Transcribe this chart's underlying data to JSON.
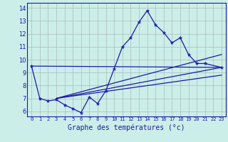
{
  "title": "Graphe des températures (°c)",
  "bg_color": "#cceee8",
  "grid_color": "#aabbbb",
  "line_color": "#1a1aaa",
  "xlim": [
    -0.5,
    23.5
  ],
  "ylim": [
    5.6,
    14.4
  ],
  "yticks": [
    6,
    7,
    8,
    9,
    10,
    11,
    12,
    13,
    14
  ],
  "xticks": [
    0,
    1,
    2,
    3,
    4,
    5,
    6,
    7,
    8,
    9,
    10,
    11,
    12,
    13,
    14,
    15,
    16,
    17,
    18,
    19,
    20,
    21,
    22,
    23
  ],
  "x_labels": [
    "0",
    "1",
    "2",
    "3",
    "4",
    "5",
    "6",
    "7",
    "8",
    "9",
    "10",
    "11",
    "12",
    "13",
    "14",
    "15",
    "16",
    "17",
    "18",
    "19",
    "20",
    "21",
    "22",
    "23"
  ],
  "main_x": [
    0,
    1,
    2,
    3,
    4,
    5,
    6,
    7,
    8,
    9,
    10,
    11,
    12,
    13,
    14,
    15,
    16,
    17,
    18,
    19,
    20,
    21,
    23
  ],
  "main_y": [
    9.5,
    7.0,
    6.8,
    6.9,
    6.5,
    6.2,
    5.9,
    7.1,
    6.6,
    7.6,
    9.3,
    11.0,
    11.7,
    12.9,
    13.8,
    12.7,
    12.1,
    11.3,
    11.7,
    10.4,
    9.7,
    9.7,
    9.4
  ],
  "trend_lines": [
    {
      "x": [
        0,
        23
      ],
      "y": [
        9.5,
        9.4
      ]
    },
    {
      "x": [
        3,
        23
      ],
      "y": [
        7.0,
        10.4
      ]
    },
    {
      "x": [
        3,
        23
      ],
      "y": [
        7.0,
        9.4
      ]
    },
    {
      "x": [
        3,
        23
      ],
      "y": [
        7.0,
        8.8
      ]
    }
  ],
  "xlabel_fontsize": 7,
  "tick_fontsize_x": 5,
  "tick_fontsize_y": 6
}
